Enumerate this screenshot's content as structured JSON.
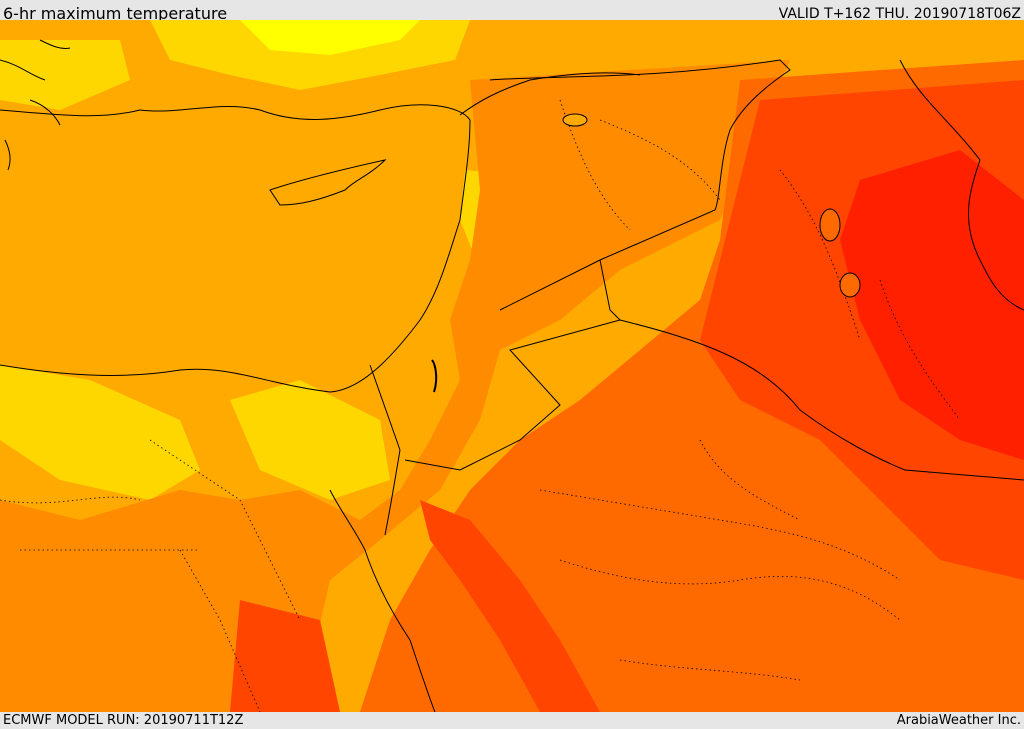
{
  "header": {
    "title": "6-hr maximum temperature",
    "valid": "VALID T+162 THU. 20190718T06Z"
  },
  "footer": {
    "model_run": "ECMWF MODEL RUN: 20190711T12Z",
    "credit": "ArabiaWeather Inc."
  },
  "map": {
    "palette": {
      "sea": "#ffaa00",
      "warm_yellow": "#ffd700",
      "bright_yellow": "#ffff00",
      "orange": "#ff8c00",
      "dark_orange": "#ff6a00",
      "red_orange": "#ff4500",
      "red": "#ff2000",
      "border": "#000000"
    }
  }
}
